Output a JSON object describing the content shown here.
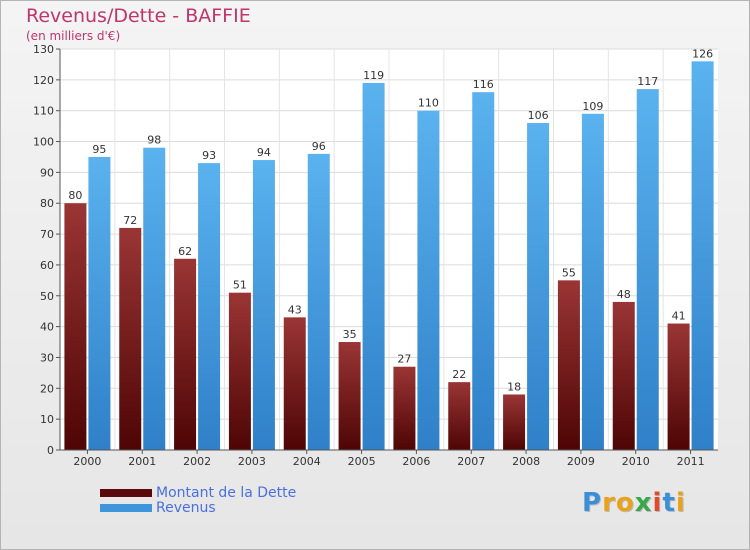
{
  "header": {
    "title": "Revenus/Dette - BAFFIE",
    "subtitle": "(en milliers d'€)"
  },
  "chart_data": {
    "type": "bar",
    "categories": [
      "2000",
      "2001",
      "2002",
      "2003",
      "2004",
      "2005",
      "2006",
      "2007",
      "2008",
      "2009",
      "2010",
      "2011"
    ],
    "series": [
      {
        "name": "Montant de la Dette",
        "values": [
          80,
          72,
          62,
          51,
          43,
          35,
          27,
          22,
          18,
          55,
          48,
          41
        ],
        "color": "#7a1c1c"
      },
      {
        "name": "Revenus",
        "values": [
          95,
          98,
          93,
          94,
          96,
          119,
          110,
          116,
          106,
          109,
          117,
          126
        ],
        "color": "#4aa3e6"
      }
    ],
    "title": "Revenus/Dette - BAFFIE",
    "ylabel": "(en milliers d'€)",
    "xlabel": "",
    "ylim": [
      0,
      130
    ],
    "yticks": [
      0,
      10,
      20,
      30,
      40,
      50,
      60,
      70,
      80,
      90,
      100,
      110,
      120,
      130
    ],
    "grid": true,
    "legend_position": "bottom-left"
  },
  "legend": {
    "items": [
      {
        "label": "Montant de la Dette",
        "color": "#5a0a0a"
      },
      {
        "label": "Revenus",
        "color": "#3e95dc"
      }
    ]
  },
  "logo": {
    "letters": [
      {
        "ch": "P",
        "color": "#3a8fd8"
      },
      {
        "ch": "r",
        "color": "#e8a21c"
      },
      {
        "ch": "o",
        "color": "#e8a21c"
      },
      {
        "ch": "x",
        "color": "#3aa84a"
      },
      {
        "ch": "i",
        "color": "#e04a2a"
      },
      {
        "ch": "t",
        "color": "#3a8fd8"
      },
      {
        "ch": "i",
        "color": "#e8a21c"
      }
    ]
  }
}
